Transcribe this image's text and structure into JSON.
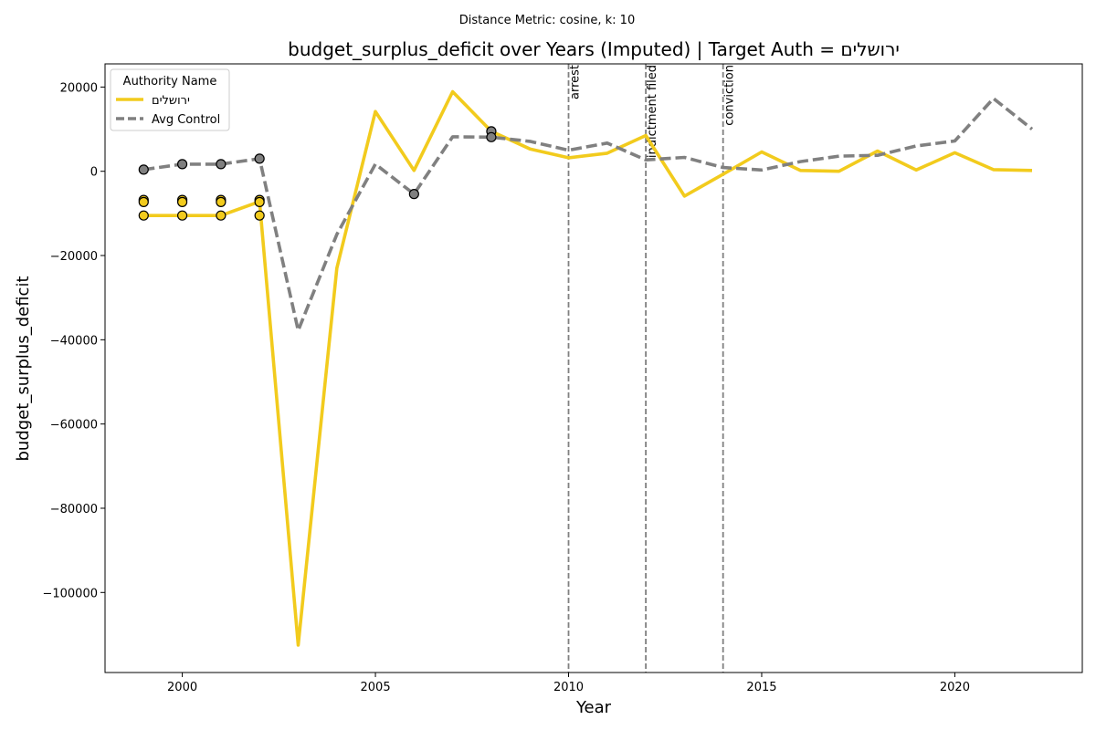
{
  "chart_data": {
    "type": "line",
    "suptitle": "Distance Metric: cosine, k: 10",
    "title": "budget_surplus_deficit over Years (Imputed) | Target Auth = ירושלים",
    "xlabel": "Year",
    "ylabel": "budget_surplus_deficit",
    "xlim": [
      1998,
      2023.3
    ],
    "ylim": [
      -119000,
      25500
    ],
    "xticks": [
      2000,
      2005,
      2010,
      2015,
      2020
    ],
    "yticks": [
      20000,
      0,
      -20000,
      -40000,
      -60000,
      -80000,
      -100000
    ],
    "ytick_labels": [
      "20000",
      "0",
      "−20000",
      "−40000",
      "−60000",
      "−80000",
      "−100000"
    ],
    "grid": false,
    "legend": {
      "title": "Authority Name",
      "placement": "upper-left"
    },
    "series": [
      {
        "name": "ירושלים",
        "color": "#f2cb1d",
        "style": "solid",
        "x": [
          1999,
          2000,
          2001,
          2002,
          2003,
          2004,
          2005,
          2006,
          2007,
          2008,
          2009,
          2010,
          2011,
          2012,
          2013,
          2014,
          2015,
          2016,
          2017,
          2018,
          2019,
          2020,
          2021,
          2022
        ],
        "y": [
          -10500,
          -10500,
          -10500,
          -7200,
          -112500,
          -23000,
          14200,
          200,
          18900,
          9500,
          5300,
          3200,
          4300,
          8500,
          -5900,
          -700,
          4600,
          200,
          0,
          4800,
          300,
          4400,
          400,
          200
        ]
      },
      {
        "name": "Avg Control",
        "color": "#808080",
        "style": "dashed",
        "x": [
          1999,
          2000,
          2001,
          2002,
          2003,
          2004,
          2005,
          2006,
          2007,
          2008,
          2009,
          2010,
          2011,
          2012,
          2013,
          2014,
          2015,
          2016,
          2017,
          2018,
          2019,
          2020,
          2021,
          2022
        ],
        "y": [
          400,
          1700,
          1700,
          3000,
          -37800,
          -15000,
          1700,
          -5400,
          8200,
          8100,
          7100,
          5000,
          6700,
          2700,
          3300,
          900,
          300,
          2300,
          3600,
          3800,
          6000,
          7200,
          17300,
          10000
        ]
      }
    ],
    "imputed_markers": [
      {
        "series": "ירושלים",
        "x": [
          1999,
          1999,
          1999,
          2000,
          2000,
          2000,
          2001,
          2001,
          2001,
          2002,
          2002,
          2002
        ],
        "y": [
          -6800,
          -7300,
          -10500,
          -6800,
          -7300,
          -10500,
          -6800,
          -7300,
          -10500,
          -6800,
          -7300,
          -10500
        ]
      },
      {
        "series": "Avg Control",
        "x": [
          1999,
          2000,
          2001,
          2002,
          2006,
          2008,
          2008
        ],
        "y": [
          400,
          1700,
          1700,
          3000,
          -5400,
          9500,
          8100
        ]
      }
    ],
    "events": [
      {
        "x": 2010,
        "label": "arrest"
      },
      {
        "x": 2012,
        "label": "indictment filed"
      },
      {
        "x": 2014,
        "label": "conviction"
      }
    ]
  }
}
